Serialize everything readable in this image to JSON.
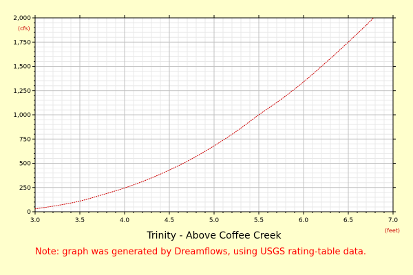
{
  "chart_data": {
    "type": "line",
    "title": "Trinity - Above Coffee Creek",
    "xlabel": "",
    "ylabel": "",
    "x_unit": "(feet)",
    "y_unit": "(cfs)",
    "xlim": [
      3.0,
      7.0
    ],
    "ylim": [
      0,
      2000
    ],
    "x_ticks": [
      "3.0",
      "3.5",
      "4.0",
      "4.5",
      "5.0",
      "5.5",
      "6.0",
      "6.5",
      "7.0"
    ],
    "y_ticks": [
      "0",
      "250",
      "500",
      "750",
      "1,000",
      "1,250",
      "1,500",
      "1,750",
      "2,000"
    ],
    "grid": true,
    "series": [
      {
        "color": "#cc0000",
        "x": [
          3.0,
          3.25,
          3.5,
          3.75,
          4.0,
          4.25,
          4.5,
          4.75,
          5.0,
          5.25,
          5.5,
          5.75,
          6.0,
          6.25,
          6.5,
          6.75,
          6.78
        ],
        "y": [
          30,
          65,
          110,
          175,
          245,
          330,
          430,
          545,
          680,
          830,
          1000,
          1160,
          1340,
          1540,
          1750,
          1970,
          2000
        ]
      }
    ]
  },
  "note": "Note: graph was generated by Dreamflows, using USGS rating-table data.",
  "colors": {
    "background": "#ffffcc",
    "plot_background": "#ffffff",
    "grid_major": "#c0c0c0",
    "grid_minor": "#e8e8e8",
    "series": "#cc0000",
    "note": "#ff0000"
  }
}
